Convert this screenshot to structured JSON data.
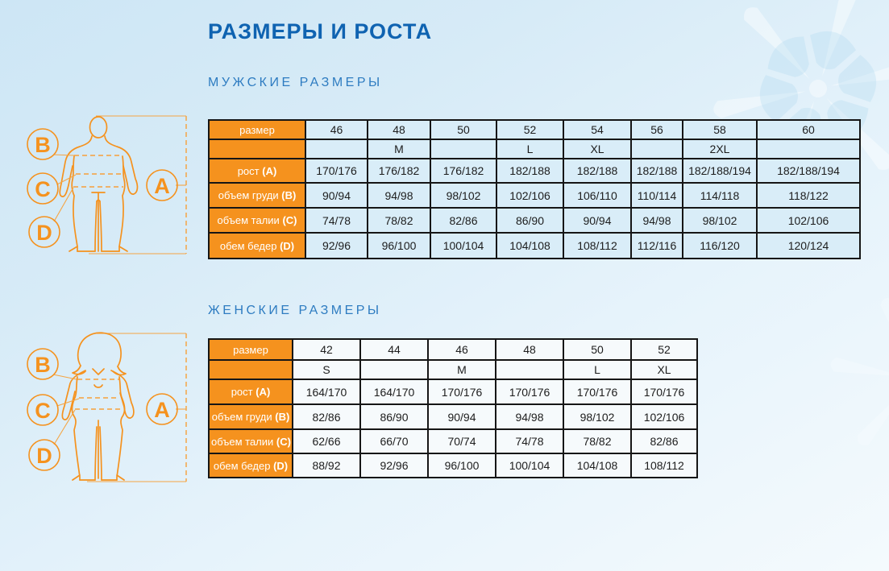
{
  "page": {
    "title": "РАЗМЕРЫ И РОСТА"
  },
  "colors": {
    "accent_orange": "#f5921e",
    "title_blue": "#0f63b1",
    "heading_blue": "#2e7cc1",
    "table_border": "#161616",
    "men_cell_bg": "#d9edf8",
    "women_cell_bg": "#f6fafc"
  },
  "diagram": {
    "labels": {
      "a": "A",
      "b": "B",
      "c": "C",
      "d": "D"
    }
  },
  "men": {
    "heading": "МУЖСКИЕ РАЗМЕРЫ",
    "table": {
      "size_label": "размер",
      "sizes": [
        "46",
        "48",
        "50",
        "52",
        "54",
        "56",
        "58",
        "60"
      ],
      "letter_sizes": [
        "",
        "M",
        "",
        "L",
        "XL",
        "",
        "2XL",
        ""
      ],
      "rows": [
        {
          "label": "рост",
          "letter": "(A)",
          "values": [
            "170/176",
            "176/182",
            "176/182",
            "182/188",
            "182/188",
            "182/188",
            "182/188/194",
            "182/188/194"
          ]
        },
        {
          "label": "объем груди",
          "letter": "(B)",
          "values": [
            "90/94",
            "94/98",
            "98/102",
            "102/106",
            "106/110",
            "110/114",
            "114/118",
            "118/122"
          ]
        },
        {
          "label": "объем талии",
          "letter": "(C)",
          "values": [
            "74/78",
            "78/82",
            "82/86",
            "86/90",
            "90/94",
            "94/98",
            "98/102",
            "102/106"
          ]
        },
        {
          "label": "обем бедер",
          "letter": "(D)",
          "values": [
            "92/96",
            "96/100",
            "100/104",
            "104/108",
            "108/112",
            "112/116",
            "116/120",
            "120/124"
          ]
        }
      ]
    }
  },
  "women": {
    "heading": "ЖЕНСКИЕ РАЗМЕРЫ",
    "table": {
      "size_label": "размер",
      "sizes": [
        "42",
        "44",
        "46",
        "48",
        "50",
        "52"
      ],
      "letter_sizes": [
        "S",
        "",
        "M",
        "",
        "L",
        "XL"
      ],
      "rows": [
        {
          "label": "рост",
          "letter": "(A)",
          "values": [
            "164/170",
            "164/170",
            "170/176",
            "170/176",
            "170/176",
            "170/176"
          ]
        },
        {
          "label": "объем груди",
          "letter": "(B)",
          "values": [
            "82/86",
            "86/90",
            "90/94",
            "94/98",
            "98/102",
            "102/106"
          ]
        },
        {
          "label": "объем талии",
          "letter": "(C)",
          "values": [
            "62/66",
            "66/70",
            "70/74",
            "74/78",
            "78/82",
            "82/86"
          ]
        },
        {
          "label": "обем бедер",
          "letter": "(D)",
          "values": [
            "88/92",
            "92/96",
            "96/100",
            "100/104",
            "104/108",
            "108/112"
          ]
        }
      ]
    }
  }
}
